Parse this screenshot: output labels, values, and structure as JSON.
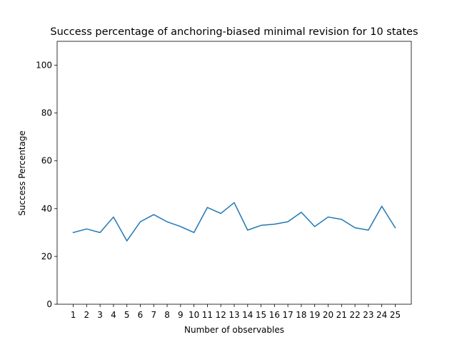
{
  "chart_data": {
    "type": "line",
    "title": "Success percentage of anchoring-biased minimal revision for 10 states",
    "xlabel": "Number of observables",
    "ylabel": "Success Percentage",
    "x": [
      1,
      2,
      3,
      4,
      5,
      6,
      7,
      8,
      9,
      10,
      11,
      12,
      13,
      14,
      15,
      16,
      17,
      18,
      19,
      20,
      21,
      22,
      23,
      24,
      25
    ],
    "series": [
      {
        "values": [
          30.0,
          31.5,
          30.0,
          36.5,
          26.5,
          34.5,
          37.5,
          34.5,
          32.5,
          30.0,
          40.5,
          38.0,
          42.5,
          31.0,
          33.0,
          33.5,
          34.5,
          38.5,
          32.5,
          36.5,
          35.5,
          32.0,
          31.0,
          41.0,
          32.0
        ],
        "color": "#1f77b4"
      }
    ],
    "ylim": [
      0,
      110
    ],
    "xlim": [
      -0.2,
      26.2
    ],
    "yticks": [
      0,
      20,
      40,
      60,
      80,
      100
    ],
    "xticks": [
      1,
      2,
      3,
      4,
      5,
      6,
      7,
      8,
      9,
      10,
      11,
      12,
      13,
      14,
      15,
      16,
      17,
      18,
      19,
      20,
      21,
      22,
      23,
      24,
      25
    ],
    "grid": false,
    "legend": "none"
  }
}
